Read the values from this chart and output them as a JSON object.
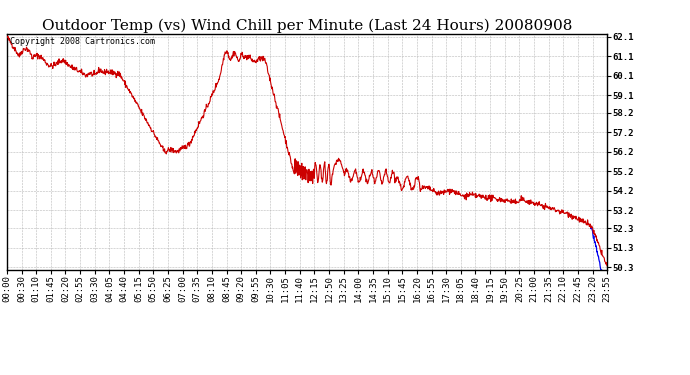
{
  "title": "Outdoor Temp (vs) Wind Chill per Minute (Last 24 Hours) 20080908",
  "copyright_text": "Copyright 2008 Cartronics.com",
  "background_color": "#ffffff",
  "plot_bg_color": "#ffffff",
  "grid_color": "#b0b0b0",
  "line_color_red": "#cc0000",
  "line_color_blue": "#0000ee",
  "ylim_min": 50.3,
  "ylim_max": 62.1,
  "yticks": [
    50.3,
    51.3,
    52.3,
    53.2,
    54.2,
    55.2,
    56.2,
    57.2,
    58.2,
    59.1,
    60.1,
    61.1,
    62.1
  ],
  "xtick_labels": [
    "00:00",
    "00:30",
    "01:10",
    "01:45",
    "02:20",
    "02:55",
    "03:30",
    "04:05",
    "04:40",
    "05:15",
    "05:50",
    "06:25",
    "07:00",
    "07:35",
    "08:10",
    "08:45",
    "09:20",
    "09:55",
    "10:30",
    "11:05",
    "11:40",
    "12:15",
    "12:50",
    "13:25",
    "14:00",
    "14:35",
    "15:10",
    "15:45",
    "16:20",
    "16:55",
    "17:30",
    "18:05",
    "18:40",
    "19:15",
    "19:50",
    "20:25",
    "21:00",
    "21:35",
    "22:10",
    "22:45",
    "23:20",
    "23:55"
  ],
  "title_fontsize": 11,
  "tick_fontsize": 6.5,
  "copyright_fontsize": 6
}
